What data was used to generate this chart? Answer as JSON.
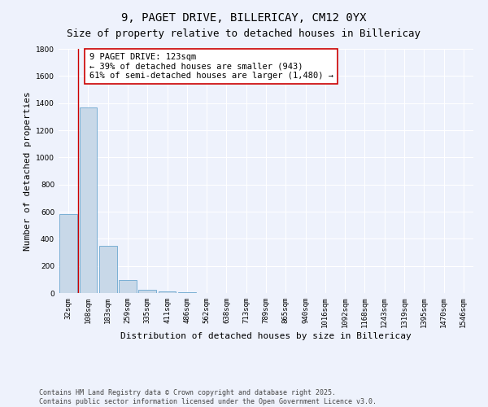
{
  "title_line1": "9, PAGET DRIVE, BILLERICAY, CM12 0YX",
  "title_line2": "Size of property relative to detached houses in Billericay",
  "xlabel": "Distribution of detached houses by size in Billericay",
  "ylabel": "Number of detached properties",
  "bar_values": [
    580,
    1370,
    350,
    95,
    25,
    10,
    5,
    2,
    0,
    0,
    0,
    0,
    0,
    0,
    0,
    0,
    0,
    0,
    0,
    0,
    0
  ],
  "bar_labels": [
    "32sqm",
    "108sqm",
    "183sqm",
    "259sqm",
    "335sqm",
    "411sqm",
    "486sqm",
    "562sqm",
    "638sqm",
    "713sqm",
    "789sqm",
    "865sqm",
    "940sqm",
    "1016sqm",
    "1092sqm",
    "1168sqm",
    "1243sqm",
    "1319sqm",
    "1395sqm",
    "1470sqm",
    "1546sqm"
  ],
  "bar_color": "#c8d8e8",
  "bar_edge_color": "#7aafd4",
  "vline_x": 0.5,
  "vline_color": "#cc0000",
  "ylim": [
    0,
    1800
  ],
  "yticks": [
    0,
    200,
    400,
    600,
    800,
    1000,
    1200,
    1400,
    1600,
    1800
  ],
  "annotation_text": "9 PAGET DRIVE: 123sqm\n← 39% of detached houses are smaller (943)\n61% of semi-detached houses are larger (1,480) →",
  "annotation_box_color": "#ffffff",
  "annotation_box_edge": "#cc0000",
  "background_color": "#eef2fc",
  "grid_color": "#ffffff",
  "footer_text": "Contains HM Land Registry data © Crown copyright and database right 2025.\nContains public sector information licensed under the Open Government Licence v3.0.",
  "title_fontsize": 10,
  "subtitle_fontsize": 9,
  "axis_label_fontsize": 8,
  "tick_fontsize": 6.5,
  "annotation_fontsize": 7.5,
  "footer_fontsize": 6
}
